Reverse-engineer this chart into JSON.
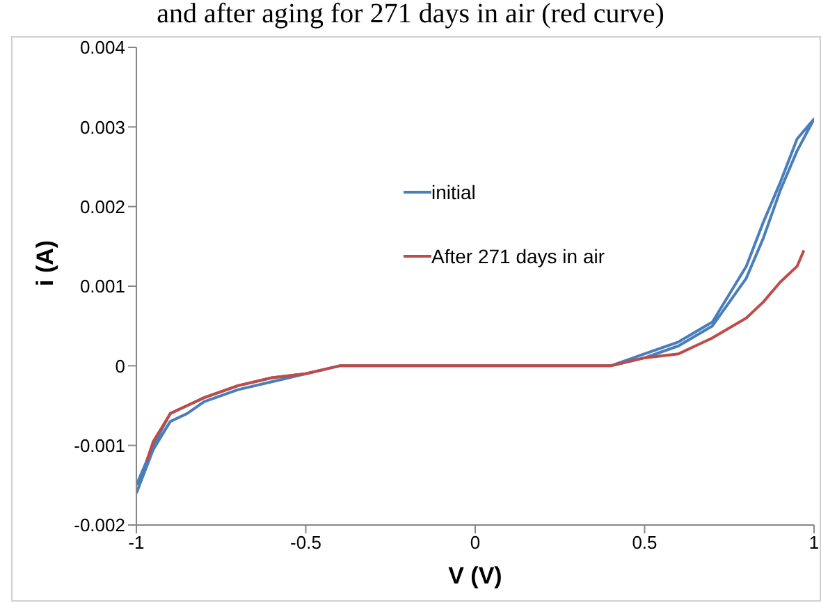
{
  "chart_data": {
    "type": "line",
    "title": "and after aging for 271 days in air (red curve)",
    "xlabel": "V (V)",
    "ylabel": "i (A)",
    "series": [
      {
        "name": "initial",
        "color": "#4a7ebb",
        "x": [
          -1,
          -0.95,
          -0.9,
          -0.85,
          -0.8,
          -0.7,
          -0.6,
          -0.5,
          -0.4,
          -0.3,
          -0.2,
          0,
          0.2,
          0.3,
          0.4,
          0.5,
          0.6,
          0.7,
          0.8,
          0.85,
          0.9,
          0.95,
          1,
          0.95,
          0.9,
          0.85,
          0.8,
          0.7,
          0.6,
          0.5,
          0.4,
          0.3,
          0.2,
          0,
          -0.2,
          -0.3,
          -0.4,
          -0.5,
          -0.6,
          -0.7,
          -0.8,
          -0.85,
          -0.9,
          -0.95,
          -1
        ],
        "values": [
          -0.0016,
          -0.00105,
          -0.0007,
          -0.0006,
          -0.00045,
          -0.0003,
          -0.0002,
          -0.0001,
          0,
          0,
          0,
          0,
          0,
          0,
          0,
          0.0001,
          0.00025,
          0.0005,
          0.0011,
          0.0016,
          0.0022,
          0.0027,
          0.0031,
          0.00285,
          0.0023,
          0.0018,
          0.00125,
          0.00055,
          0.0003,
          0.00015,
          0,
          0,
          0,
          0,
          0,
          0,
          0,
          -0.0001,
          -0.00015,
          -0.00025,
          -0.0004,
          -0.0005,
          -0.0006,
          -0.001,
          -0.0015
        ]
      },
      {
        "name": "After 271 days in air",
        "color": "#be4b48",
        "x": [
          -0.97,
          -0.95,
          -0.9,
          -0.85,
          -0.8,
          -0.7,
          -0.6,
          -0.5,
          -0.4,
          -0.3,
          -0.2,
          0,
          0.2,
          0.3,
          0.4,
          0.5,
          0.6,
          0.7,
          0.8,
          0.85,
          0.9,
          0.95,
          0.97
        ],
        "values": [
          -0.0012,
          -0.00095,
          -0.0006,
          -0.0005,
          -0.0004,
          -0.00025,
          -0.00015,
          -0.0001,
          0,
          0,
          0,
          0,
          0,
          0,
          0,
          0.0001,
          0.00015,
          0.00035,
          0.0006,
          0.0008,
          0.00105,
          0.00125,
          0.00145
        ]
      }
    ],
    "xlim": [
      -1,
      1
    ],
    "xticks": [
      -1,
      -0.5,
      0,
      0.5,
      1
    ],
    "ylim": [
      -0.002,
      0.004
    ],
    "yticks": [
      -0.002,
      -0.001,
      0,
      0.001,
      0.002,
      0.003,
      0.004
    ],
    "grid": false,
    "legend": "top",
    "marker": "none",
    "line_style": "solid"
  }
}
